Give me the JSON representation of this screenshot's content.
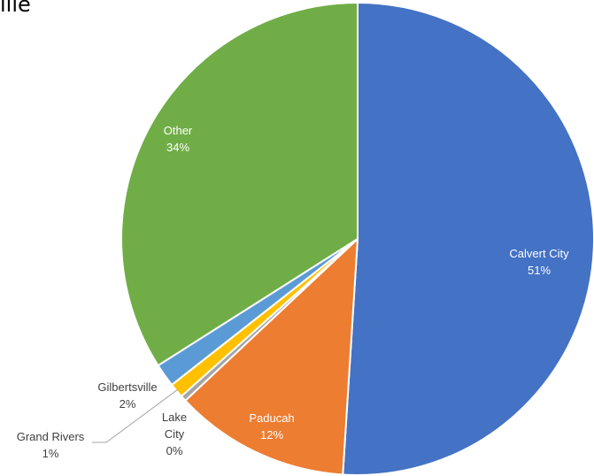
{
  "chart_data": {
    "type": "pie",
    "title_fragment": "ille",
    "slices": [
      {
        "name": "Calvert City",
        "value": 51,
        "label": "51%",
        "color": "#4472C4"
      },
      {
        "name": "Paducah",
        "value": 12,
        "label": "12%",
        "color": "#ED7D31"
      },
      {
        "name": "Lake City",
        "value": 0.4,
        "label": "0%",
        "color": "#A5A5A5"
      },
      {
        "name": "Grand Rivers",
        "value": 1,
        "label": "1%",
        "color": "#FFC000"
      },
      {
        "name": "Gilbertsville",
        "value": 1.6,
        "label": "2%",
        "color": "#5B9BD5"
      },
      {
        "name": "Other",
        "value": 34,
        "label": "34%",
        "color": "#70AD47"
      }
    ]
  }
}
